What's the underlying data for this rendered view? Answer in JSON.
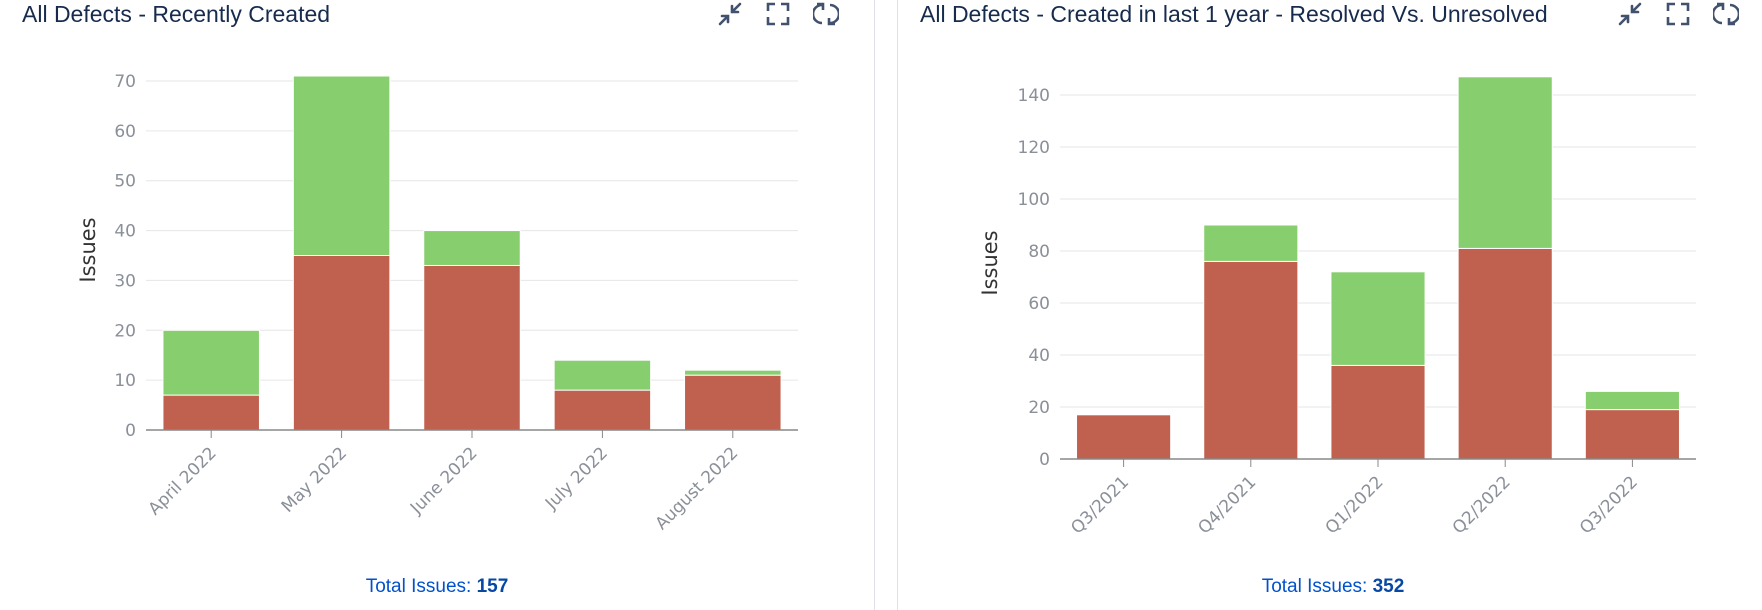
{
  "colors": {
    "resolved": "#87ce6f",
    "unresolved": "#c0604e",
    "grid": "#e6e6e6",
    "axis": "#888888",
    "link": "#0052cc"
  },
  "actions": [
    {
      "name": "minimize-icon",
      "label": "Minimize"
    },
    {
      "name": "fullscreen-icon",
      "label": "Full screen"
    },
    {
      "name": "refresh-icon",
      "label": "Refresh"
    }
  ],
  "gadgets": [
    {
      "title": "All Defects - Recently Created",
      "total_label": "Total Issues:",
      "total_value": "157"
    },
    {
      "title": "All Defects - Created in last 1 year - Resolved Vs. Unresolved",
      "total_label": "Total Issues:",
      "total_value": "352"
    }
  ],
  "chart_data": [
    {
      "type": "bar",
      "stacked": true,
      "ylabel": "Issues",
      "ylim": [
        0,
        70
      ],
      "yticks": [
        0,
        10,
        20,
        30,
        40,
        50,
        60,
        70
      ],
      "categories": [
        "April 2022",
        "May 2022",
        "June 2022",
        "July 2022",
        "August 2022"
      ],
      "series": [
        {
          "color": "#c0604e",
          "values": [
            7,
            35,
            33,
            8,
            11
          ]
        },
        {
          "color": "#87ce6f",
          "values": [
            13,
            36,
            7,
            6,
            1
          ]
        }
      ]
    },
    {
      "type": "bar",
      "stacked": true,
      "ylabel": "Issues",
      "ylim": [
        0,
        140
      ],
      "yticks": [
        0,
        20,
        40,
        60,
        80,
        100,
        120,
        140
      ],
      "categories": [
        "Q3/2021",
        "Q4/2021",
        "Q1/2022",
        "Q2/2022",
        "Q3/2022"
      ],
      "series": [
        {
          "color": "#c0604e",
          "values": [
            17,
            76,
            36,
            81,
            19
          ]
        },
        {
          "color": "#87ce6f",
          "values": [
            0,
            14,
            36,
            66,
            7
          ]
        }
      ]
    }
  ]
}
